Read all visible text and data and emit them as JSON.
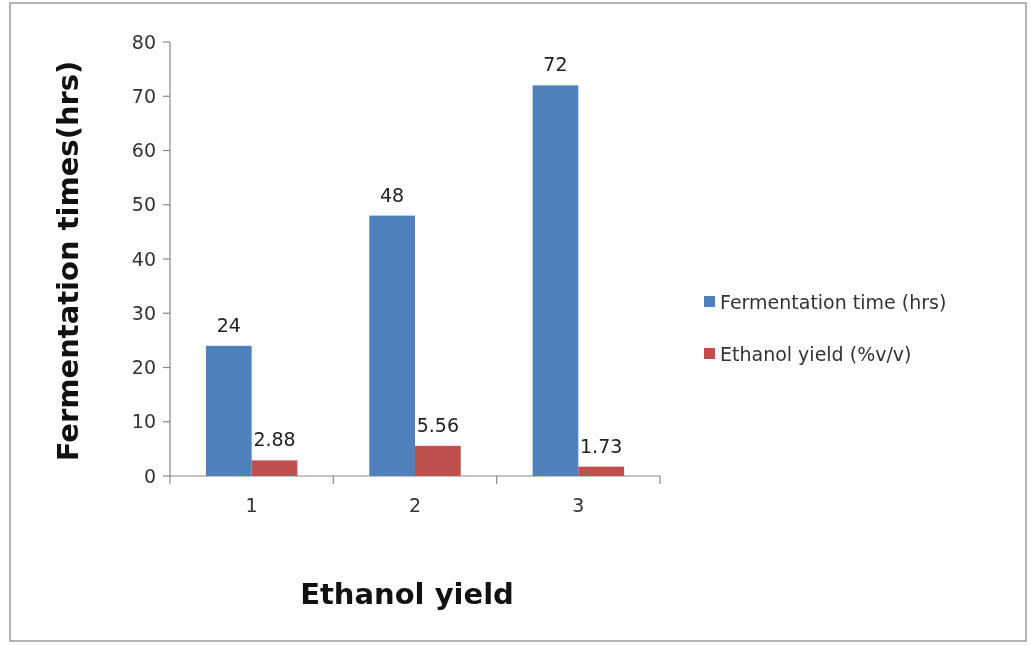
{
  "chart_data": {
    "type": "bar",
    "xlabel": "Ethanol yield",
    "ylabel": "Fermentation times(hrs)",
    "categories": [
      "1",
      "2",
      "3"
    ],
    "series": [
      {
        "name": "Fermentation time (hrs)",
        "color": "#4f81bd",
        "values": [
          24,
          48,
          72
        ]
      },
      {
        "name": "Ethanol yield (%v/v)",
        "color": "#c0504d",
        "values": [
          2.88,
          5.56,
          1.73
        ]
      }
    ],
    "ylim": [
      0,
      80
    ],
    "yticks": [
      0,
      10,
      20,
      30,
      40,
      50,
      60,
      70,
      80
    ],
    "grid": false,
    "legend": "right",
    "data_labels": true
  }
}
